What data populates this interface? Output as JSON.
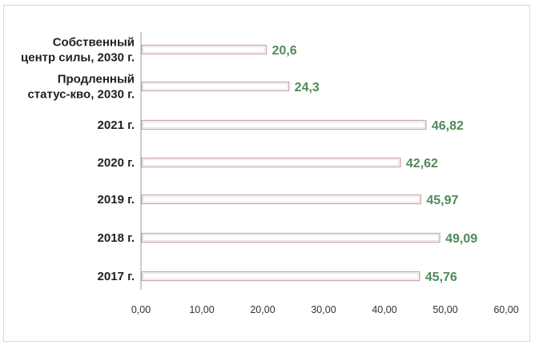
{
  "chart_data": {
    "type": "bar",
    "orientation": "horizontal",
    "categories": [
      [
        "Собственный",
        "центр силы, 2030 г."
      ],
      [
        "Продленный",
        "статус-кво, 2030 г."
      ],
      [
        "2021 г."
      ],
      [
        "2020 г."
      ],
      [
        "2019 г."
      ],
      [
        "2018 г."
      ],
      [
        "2017 г."
      ]
    ],
    "values": [
      20.6,
      24.3,
      46.82,
      42.62,
      45.97,
      49.09,
      45.76
    ],
    "value_labels": [
      "20,6",
      "24,3",
      "46,82",
      "42,62",
      "45,97",
      "49,09",
      "45,76"
    ],
    "xlim": [
      0,
      60
    ],
    "x_ticks": [
      "0,00",
      "10,00",
      "20,00",
      "30,00",
      "40,00",
      "50,00",
      "60,00"
    ],
    "x_tick_values": [
      0,
      10,
      20,
      30,
      40,
      50,
      60
    ],
    "grid": false,
    "colors": {
      "bar_fill": "#ffffff",
      "bar_stroke": "#c9a7ae",
      "value_label": "#4f8a5b",
      "category_label": "#1f1f1f",
      "axis": "#9a9a9a"
    }
  }
}
